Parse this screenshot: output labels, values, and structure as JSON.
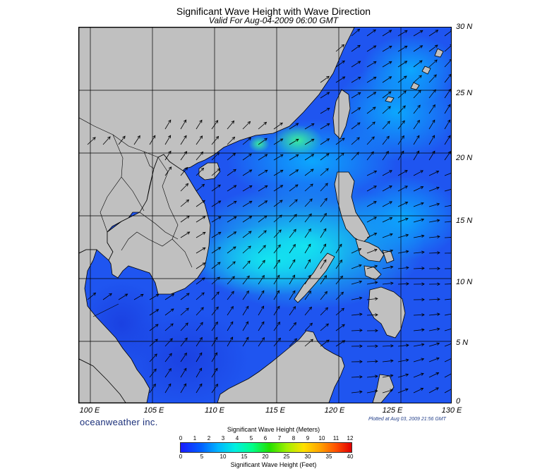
{
  "header": {
    "title": "Significant Wave Height with Wave Direction",
    "subtitle": "Valid For Aug-04-2009 06:00 GMT"
  },
  "map": {
    "lat_labels": [
      "30 N",
      "25 N",
      "20 N",
      "15 N",
      "10 N",
      "5 N",
      "0"
    ],
    "lon_labels": [
      "100 E",
      "105 E",
      "110 E",
      "115 E",
      "120 E",
      "125 E",
      "130 E"
    ],
    "land_color": "#c0c0c0",
    "wave_direction": "northeast"
  },
  "footer": {
    "brand": "oceanweather inc.",
    "plotted": "Plotted at Aug 03, 2009 21:56 GMT"
  },
  "legend": {
    "title_meters": "Significant Wave Height (Meters)",
    "title_feet": "Significant Wave Height (Feet)",
    "meters": [
      "0",
      "1",
      "2",
      "3",
      "4",
      "5",
      "6",
      "7",
      "8",
      "9",
      "10",
      "11",
      "12"
    ],
    "feet": [
      "0",
      "5",
      "10",
      "15",
      "20",
      "25",
      "30",
      "35",
      "40"
    ]
  }
}
